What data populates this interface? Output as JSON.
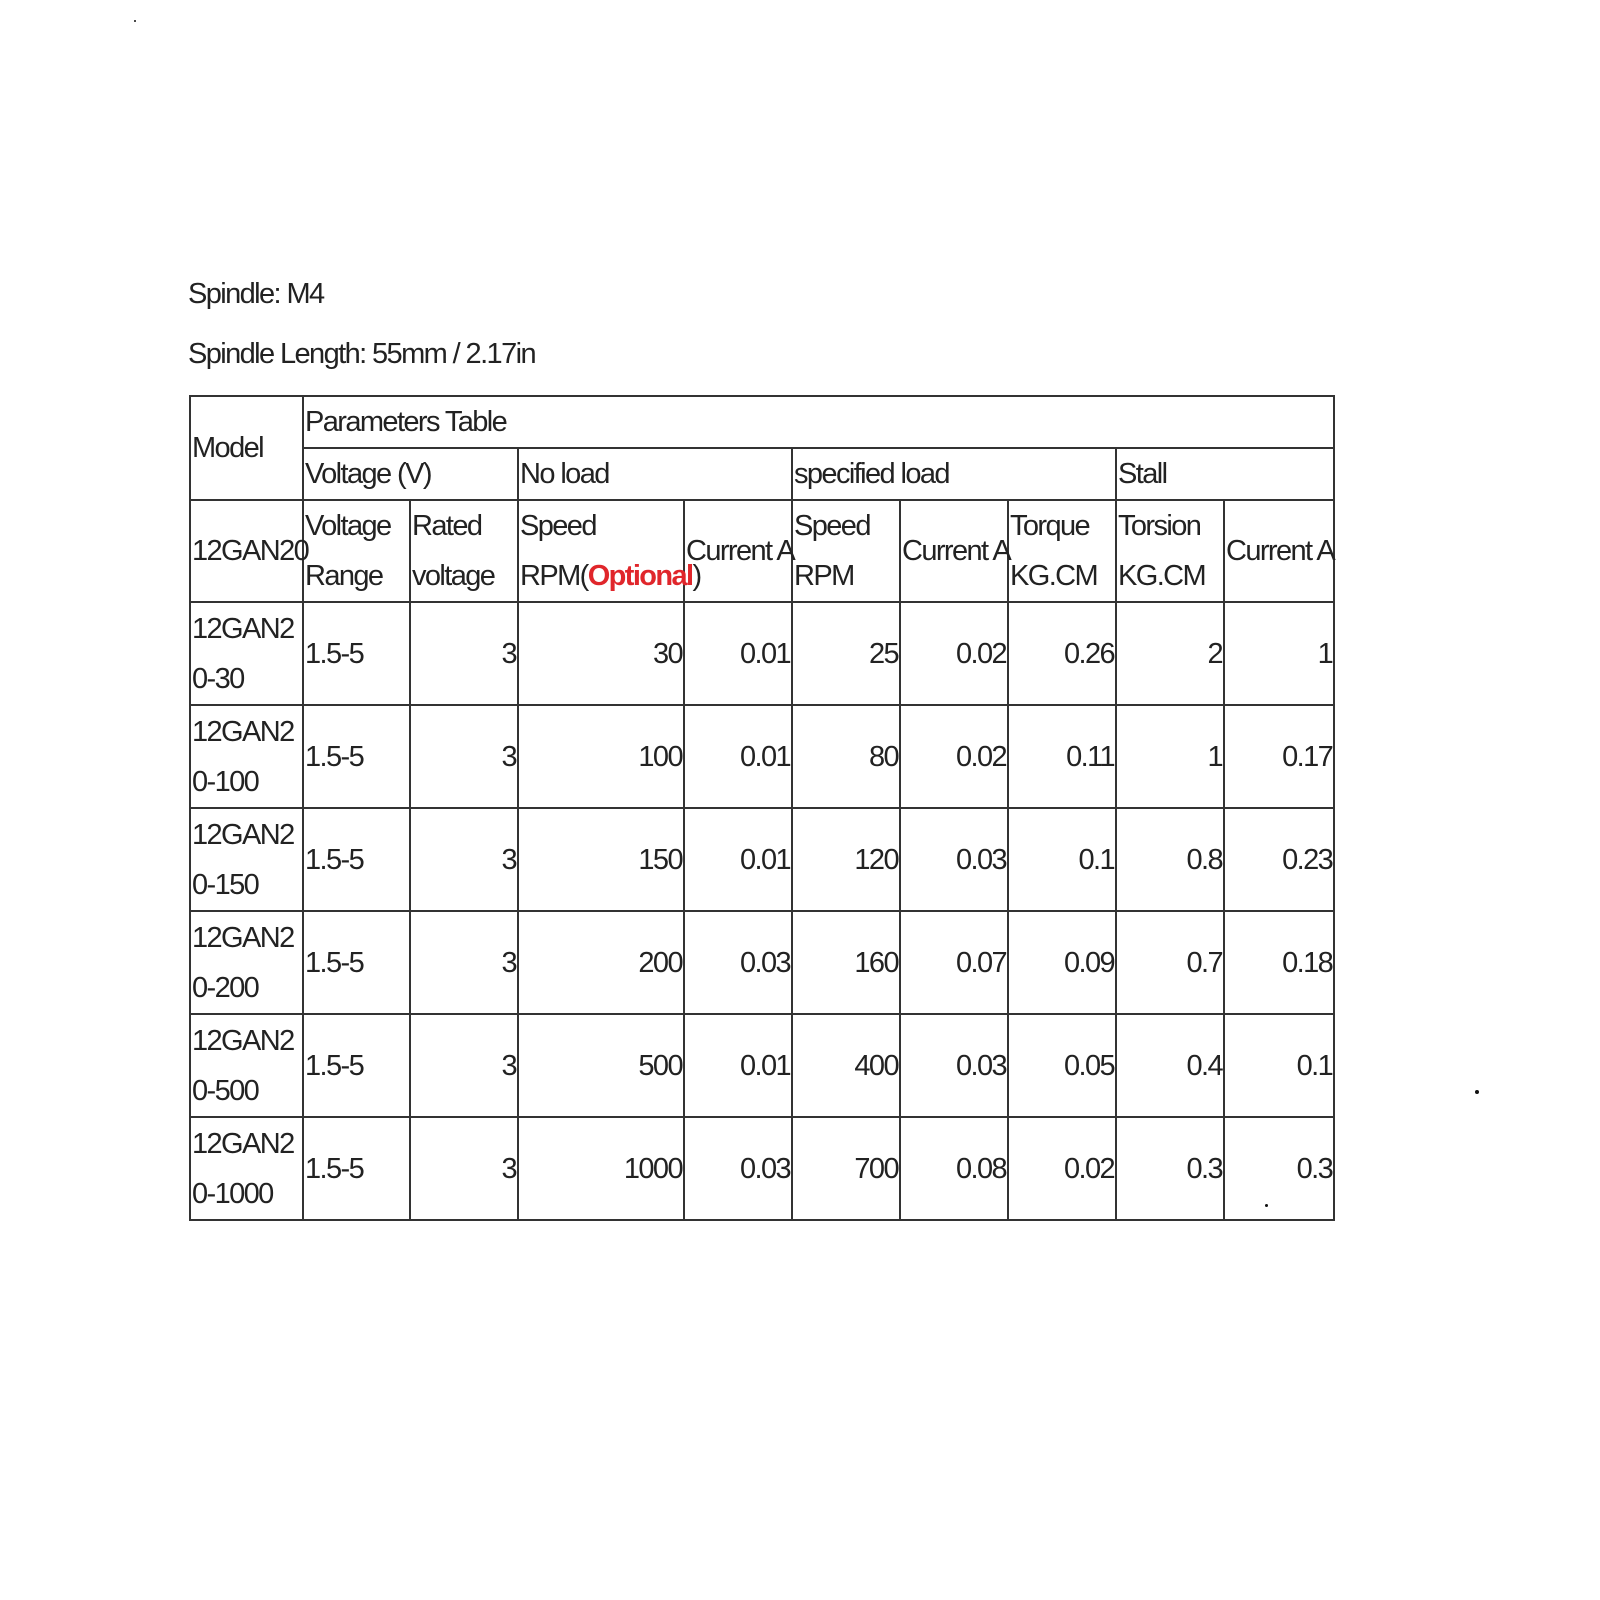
{
  "spindle": "Spindle: M4",
  "spindle_length": "Spindle Length: 55mm / 2.17in",
  "table": {
    "model_header": "Model",
    "params_header": "Parameters Table",
    "groups": [
      "Voltage (V)",
      "No load",
      "specified load",
      "Stall"
    ],
    "model_series": "12GAN20",
    "subheaders": {
      "voltage_range": "Voltage Range",
      "rated_voltage": "Rated voltage",
      "noload_speed": "Speed RPM(",
      "noload_speed_optional": "Optional",
      "noload_speed_close": ")",
      "noload_current": "Current A",
      "load_speed": "Speed RPM",
      "load_current": "Current A",
      "load_torque": "Torque KG.CM",
      "stall_torsion": "Torsion KG.CM",
      "stall_current": "Current A"
    },
    "accent_color": "#e0262b",
    "rows": [
      [
        "12GAN20-30",
        "1.5-5",
        "3",
        "30",
        "0.01",
        "25",
        "0.02",
        "0.26",
        "2",
        "1"
      ],
      [
        "12GAN20-100",
        "1.5-5",
        "3",
        "100",
        "0.01",
        "80",
        "0.02",
        "0.11",
        "1",
        "0.17"
      ],
      [
        "12GAN20-150",
        "1.5-5",
        "3",
        "150",
        "0.01",
        "120",
        "0.03",
        "0.1",
        "0.8",
        "0.23"
      ],
      [
        "12GAN20-200",
        "1.5-5",
        "3",
        "200",
        "0.03",
        "160",
        "0.07",
        "0.09",
        "0.7",
        "0.18"
      ],
      [
        "12GAN20-500",
        "1.5-5",
        "3",
        "500",
        "0.01",
        "400",
        "0.03",
        "0.05",
        "0.4",
        "0.1"
      ],
      [
        "12GAN20-1000",
        "1.5-5",
        "3",
        "1000",
        "0.03",
        "700",
        "0.08",
        "0.02",
        "0.3",
        "0.3"
      ]
    ]
  }
}
